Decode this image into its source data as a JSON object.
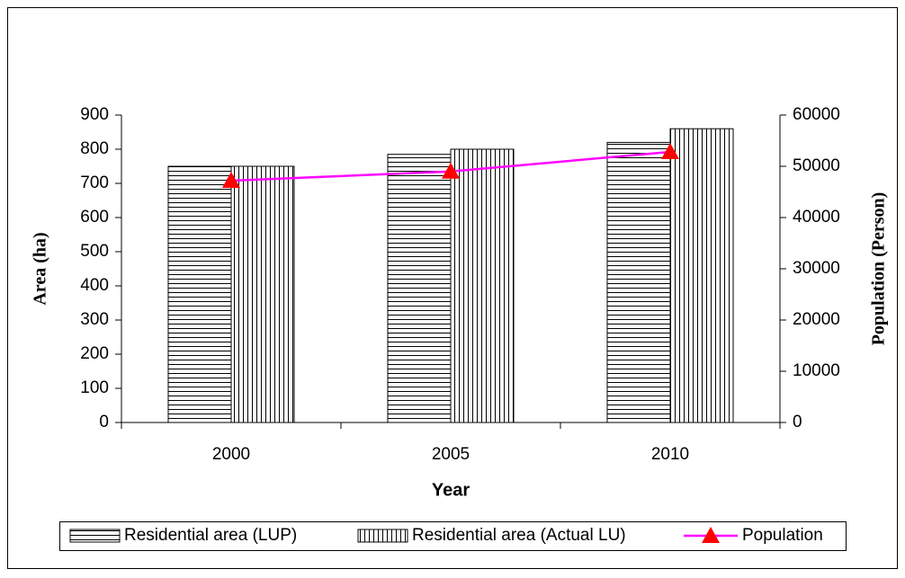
{
  "chart_data": {
    "type": "bar",
    "x_label": "Year",
    "y_label": "Area (ha)",
    "y2_label": "Population (Person)",
    "categories": [
      "2000",
      "2005",
      "2010"
    ],
    "series": [
      {
        "name": "Residential area (LUP)",
        "type": "bar",
        "hatch": "horizontal",
        "color": "#000000",
        "values": [
          750,
          785,
          820
        ]
      },
      {
        "name": "Residential area (Actual LU)",
        "type": "bar",
        "hatch": "vertical",
        "color": "#000000",
        "values": [
          750,
          800,
          860
        ]
      },
      {
        "name": "Population",
        "type": "line",
        "axis": "y2",
        "color": "#ff00ff",
        "marker_color": "#ff0000",
        "values": [
          47200,
          49000,
          52800
        ]
      }
    ],
    "ylim": [
      0,
      900
    ],
    "yticks": [
      0,
      100,
      200,
      300,
      400,
      500,
      600,
      700,
      800,
      900
    ],
    "y2lim": [
      0,
      60000
    ],
    "y2ticks": [
      0,
      10000,
      20000,
      30000,
      40000,
      50000,
      60000
    ]
  }
}
